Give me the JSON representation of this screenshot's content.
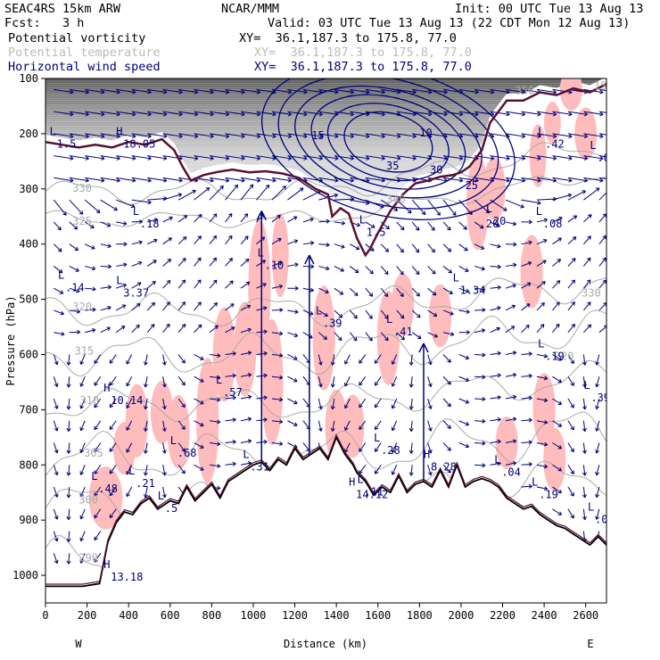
{
  "header": {
    "left_line1": "SEAC4RS 15km ARW",
    "left_line2": "Fcst:   3 h",
    "center_line1": "NCAR/MMM",
    "init": "Init: 00 UTC Tue 13 Aug 13",
    "valid": "Valid: 03 UTC Tue 13 Aug 13 (22 CDT Mon 12 Aug 13)"
  },
  "legend": [
    {
      "name": "Potential vorticity",
      "color": "#000000",
      "xy": "XY=  36.1,187.3 to 175.8, 77.0"
    },
    {
      "name": "Potential temperature",
      "color": "#bbbbbb",
      "xy": "XY=  36.1,187.3 to 175.8, 77.0"
    },
    {
      "name": "Horizontal wind speed",
      "color": "#00007a",
      "xy": "XY=  36.1,187.3 to 175.8, 77.0"
    }
  ],
  "colors": {
    "pv_fill": "#ffbcbc",
    "wind": "#00007a",
    "theta": "#aaaaaa",
    "terrain": "#000000",
    "pv_contour": "#5a1030"
  },
  "chart_data": {
    "type": "cross-section",
    "xlabel": "Distance (km)",
    "ylabel": "Pressure (hPa)",
    "xlim": [
      0,
      2700
    ],
    "ylim": [
      1050,
      100
    ],
    "xticks": [
      0,
      200,
      400,
      600,
      800,
      1000,
      1200,
      1400,
      1600,
      1800,
      2000,
      2200,
      2400,
      2600
    ],
    "yticks": [
      100,
      200,
      300,
      400,
      500,
      600,
      700,
      800,
      900,
      1000
    ],
    "end_labels": {
      "left": "W",
      "right": "E"
    },
    "terrain_surface": {
      "x": [
        0,
        180,
        260,
        300,
        340,
        380,
        420,
        460,
        500,
        540,
        560,
        600,
        640,
        680,
        720,
        760,
        800,
        840,
        880,
        920,
        960,
        1000,
        1040,
        1080,
        1120,
        1160,
        1200,
        1240,
        1280,
        1320,
        1360,
        1400,
        1440,
        1480,
        1500,
        1540,
        1580,
        1620,
        1660,
        1700,
        1740,
        1780,
        1820,
        1860,
        1900,
        1940,
        1980,
        2020,
        2060,
        2100,
        2140,
        2180,
        2220,
        2260,
        2300,
        2340,
        2380,
        2420,
        2460,
        2500,
        2540,
        2580,
        2620,
        2660,
        2700
      ],
      "p": [
        1020,
        1020,
        1015,
        940,
        905,
        885,
        890,
        870,
        860,
        880,
        875,
        865,
        870,
        840,
        865,
        850,
        835,
        860,
        830,
        820,
        810,
        800,
        795,
        810,
        790,
        800,
        770,
        790,
        780,
        770,
        790,
        750,
        780,
        800,
        815,
        830,
        855,
        840,
        850,
        820,
        850,
        835,
        830,
        840,
        810,
        840,
        800,
        840,
        830,
        825,
        830,
        840,
        860,
        870,
        880,
        875,
        890,
        900,
        910,
        915,
        925,
        935,
        945,
        930,
        945
      ]
    },
    "tropopause_pv": {
      "x": [
        0,
        80,
        160,
        240,
        320,
        400,
        480,
        560,
        620,
        660,
        700,
        760,
        820,
        900,
        980,
        1060,
        1140,
        1220,
        1300,
        1360,
        1380,
        1420,
        1460,
        1500,
        1540,
        1560,
        1600,
        1660,
        1720,
        1780,
        1840,
        1900,
        1960,
        2000,
        2040,
        2100,
        2140,
        2180,
        2220,
        2300,
        2380,
        2460,
        2540,
        2620,
        2700
      ],
      "p": [
        215,
        220,
        225,
        220,
        225,
        215,
        220,
        210,
        230,
        260,
        285,
        275,
        270,
        265,
        270,
        268,
        272,
        280,
        300,
        310,
        350,
        335,
        345,
        390,
        420,
        410,
        380,
        340,
        310,
        290,
        285,
        278,
        275,
        270,
        260,
        230,
        180,
        160,
        140,
        140,
        125,
        130,
        118,
        125,
        110
      ]
    },
    "contour_labels": {
      "theta_K": [
        {
          "text": "330",
          "x": 130,
          "p": 305
        },
        {
          "text": "325",
          "x": 130,
          "p": 365
        },
        {
          "text": "320",
          "x": 130,
          "p": 520
        },
        {
          "text": "315",
          "x": 140,
          "p": 600
        },
        {
          "text": "310",
          "x": 165,
          "p": 690
        },
        {
          "text": "305",
          "x": 185,
          "p": 785
        },
        {
          "text": "300",
          "x": 160,
          "p": 870
        },
        {
          "text": "290",
          "x": 160,
          "p": 975
        },
        {
          "text": "340",
          "x": 1640,
          "p": 325
        },
        {
          "text": "330",
          "x": 2580,
          "p": 495
        },
        {
          "text": "320",
          "x": 2450,
          "p": 610
        },
        {
          "text": "350",
          "x": 2260,
          "p": 128
        },
        {
          "text": "150",
          "x": 2640,
          "p": 120
        }
      ],
      "wind_ms": [
        {
          "text": "15",
          "x": 1280,
          "p": 210
        },
        {
          "text": "35",
          "x": 1640,
          "p": 265
        },
        {
          "text": "30",
          "x": 1850,
          "p": 272
        },
        {
          "text": "25",
          "x": 2020,
          "p": 300
        },
        {
          "text": "20",
          "x": 2120,
          "p": 370
        },
        {
          "text": "10",
          "x": 1800,
          "p": 205
        }
      ]
    },
    "extrema_labels": [
      {
        "type": "L",
        "value": "1.5",
        "x": 20,
        "p": 225
      },
      {
        "type": "H",
        "value": "18.05",
        "x": 340,
        "p": 225
      },
      {
        "type": "L",
        "value": ".18",
        "x": 420,
        "p": 370
      },
      {
        "type": "L",
        "value": ".14",
        "x": 60,
        "p": 485
      },
      {
        "type": "L",
        "value": "3.37",
        "x": 340,
        "p": 495
      },
      {
        "type": "L",
        "value": ".10",
        "x": 1020,
        "p": 445
      },
      {
        "type": "L",
        "value": ".39",
        "x": 1300,
        "p": 550
      },
      {
        "type": "L",
        "value": ".41",
        "x": 1640,
        "p": 565
      },
      {
        "type": "L",
        "value": "1.34",
        "x": 1960,
        "p": 490
      },
      {
        "type": "L",
        "value": ".42",
        "x": 2370,
        "p": 225
      },
      {
        "type": "L",
        "value": ".08",
        "x": 2360,
        "p": 370
      },
      {
        "type": "L",
        "value": ".09",
        "x": 2620,
        "p": 250
      },
      {
        "type": "L",
        "value": "1.5",
        "x": 1510,
        "p": 385
      },
      {
        "type": "L",
        "value": "20",
        "x": 2120,
        "p": 365
      },
      {
        "type": "L",
        "value": ".19",
        "x": 2370,
        "p": 610
      },
      {
        "type": "L",
        "value": ".39",
        "x": 2590,
        "p": 685
      },
      {
        "type": "H",
        "value": "10.14",
        "x": 280,
        "p": 690
      },
      {
        "type": "L",
        "value": ".57",
        "x": 820,
        "p": 675
      },
      {
        "type": "L",
        "value": ".68",
        "x": 600,
        "p": 785
      },
      {
        "type": "L",
        "value": ".28",
        "x": 1580,
        "p": 780
      },
      {
        "type": "L",
        "value": ".04",
        "x": 2160,
        "p": 820
      },
      {
        "type": "L",
        "value": ".21",
        "x": 400,
        "p": 840
      },
      {
        "type": "L",
        "value": ".48",
        "x": 220,
        "p": 850
      },
      {
        "type": "L",
        "value": ".5",
        "x": 540,
        "p": 885
      },
      {
        "type": "L",
        "value": ".31",
        "x": 950,
        "p": 810
      },
      {
        "type": "L",
        "value": ".11",
        "x": 1500,
        "p": 855
      },
      {
        "type": "H",
        "value": "8.28",
        "x": 1820,
        "p": 810
      },
      {
        "type": "H",
        "value": "14.12",
        "x": 1460,
        "p": 860
      },
      {
        "type": "L",
        "value": ".19",
        "x": 2340,
        "p": 860
      },
      {
        "type": "L",
        "value": ".00",
        "x": 2610,
        "p": 905
      },
      {
        "type": "H",
        "value": "13.18",
        "x": 280,
        "p": 1010
      }
    ]
  }
}
